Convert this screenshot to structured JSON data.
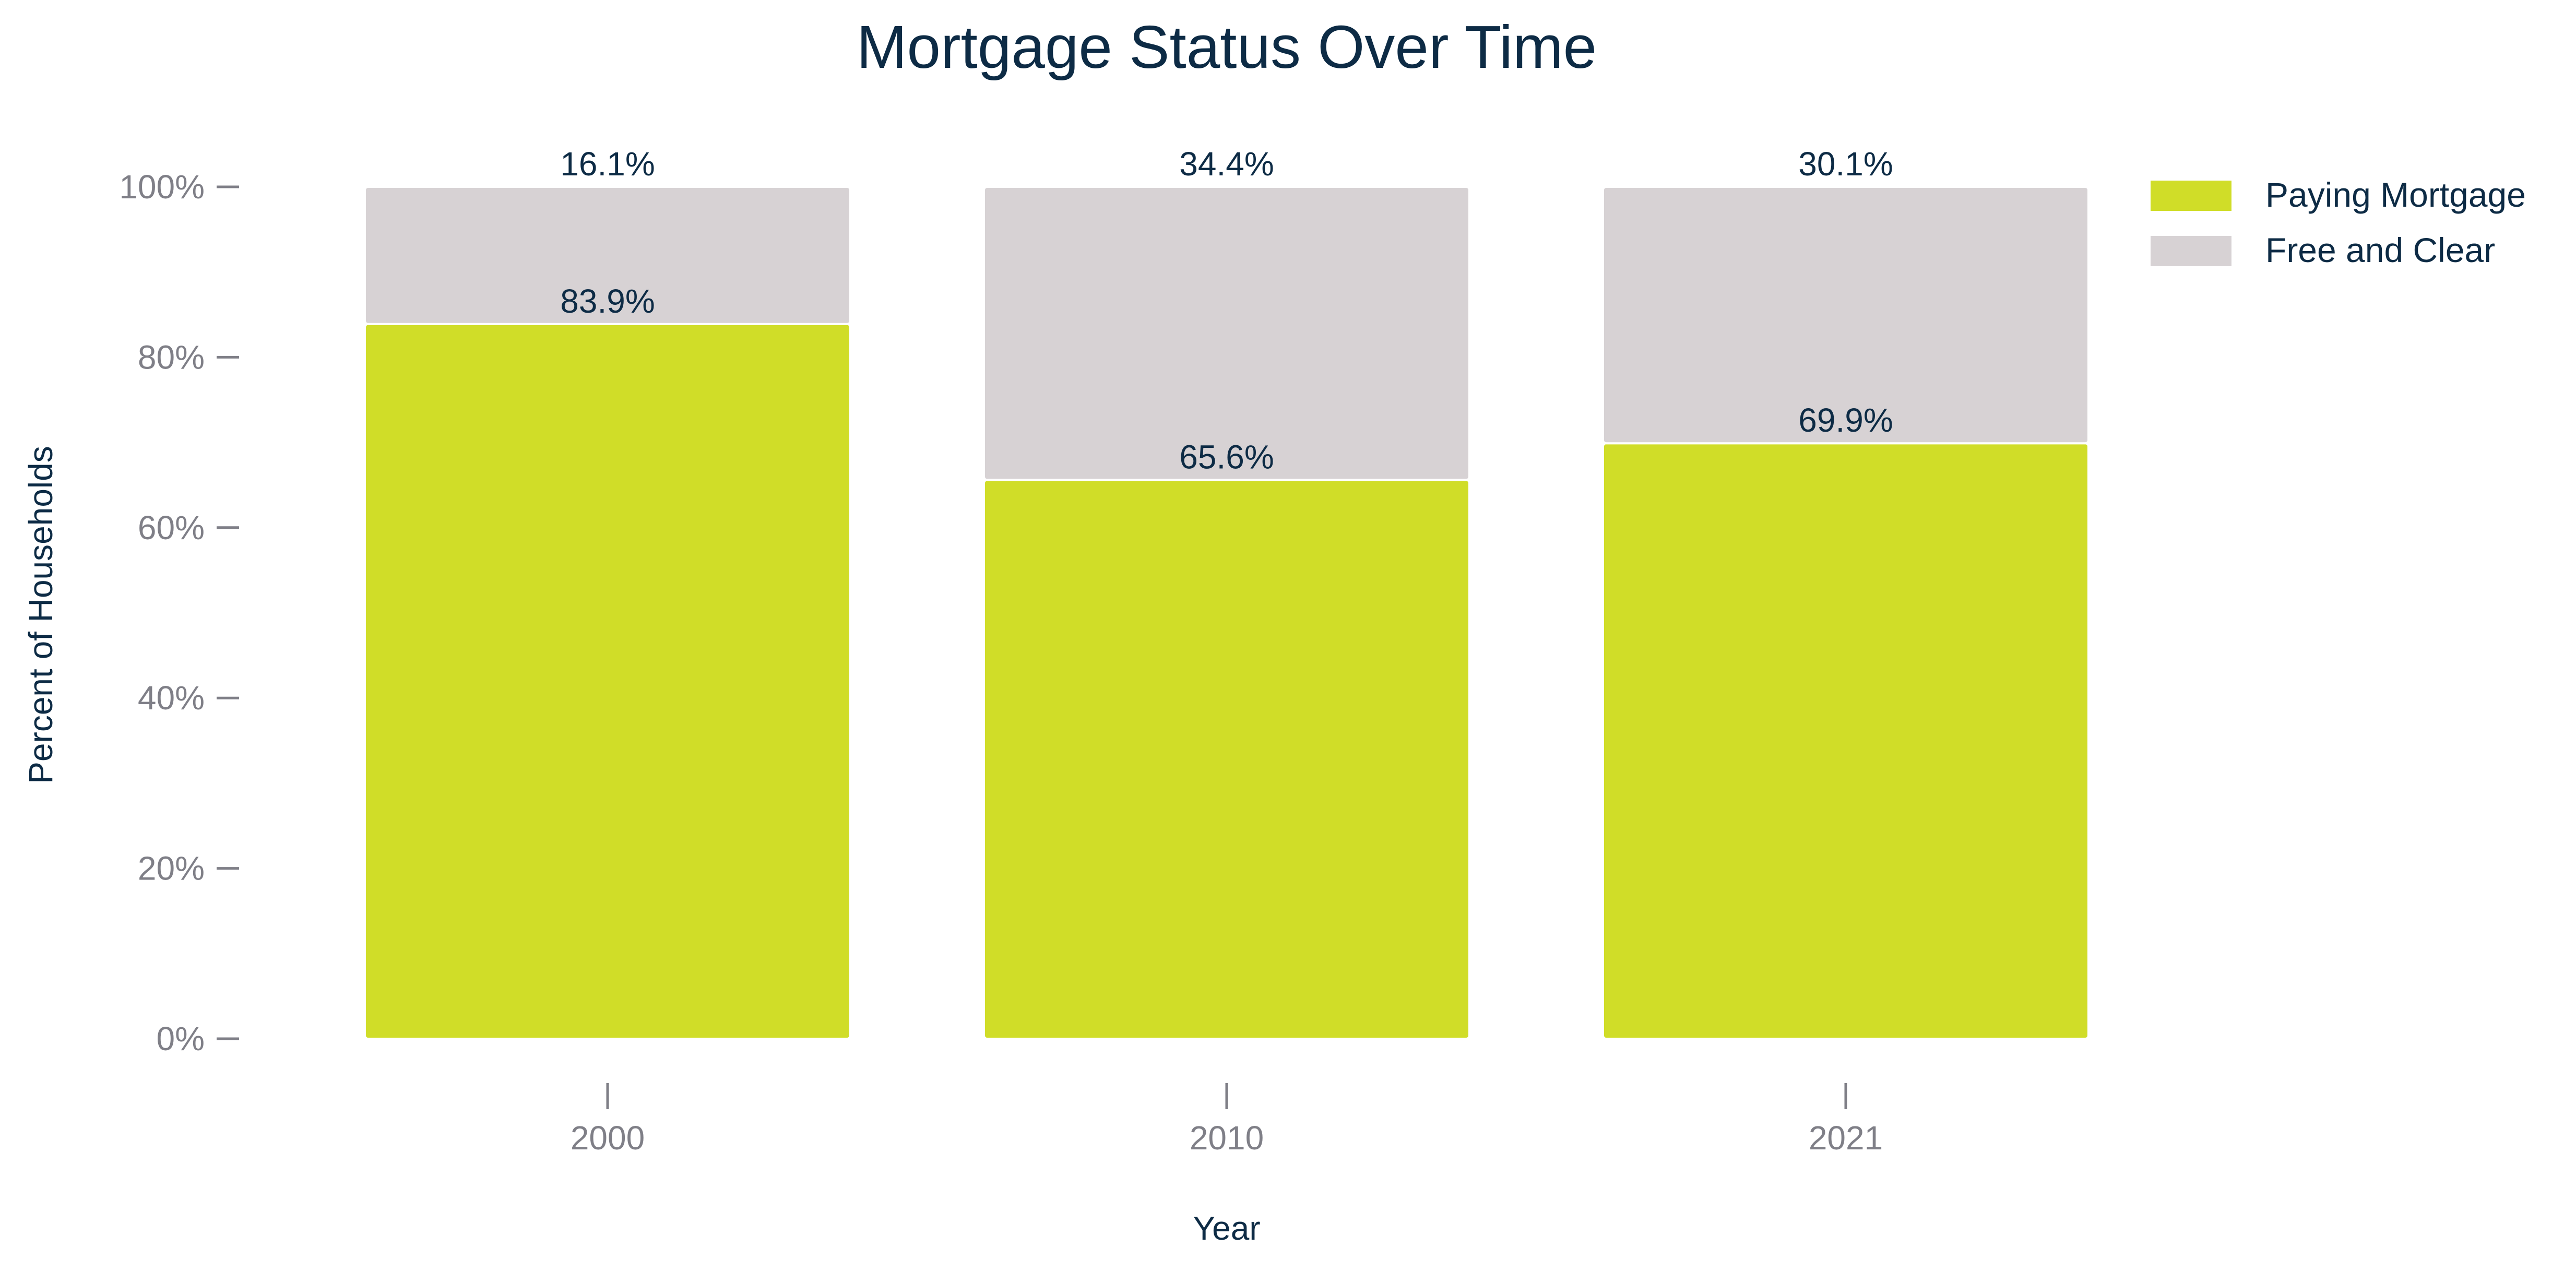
{
  "chart_data": {
    "type": "bar",
    "stacked": true,
    "title": "Mortgage Status Over Time",
    "xlabel": "Year",
    "ylabel": "Percent of Households",
    "categories": [
      "2000",
      "2010",
      "2021"
    ],
    "ylim": [
      0,
      100
    ],
    "yticks": [
      "0%",
      "20%",
      "40%",
      "60%",
      "80%",
      "100%"
    ],
    "ytick_values": [
      0,
      20,
      40,
      60,
      80,
      100
    ],
    "grid": false,
    "legend_position": "top-right",
    "series": [
      {
        "name": "Paying Mortgage",
        "values": [
          83.9,
          65.6,
          69.9
        ],
        "labels": [
          "83.9%",
          "65.6%",
          "69.9%"
        ],
        "color": "#d0dd28"
      },
      {
        "name": "Free and Clear",
        "values": [
          16.1,
          34.4,
          30.1
        ],
        "labels": [
          "16.1%",
          "34.4%",
          "30.1%"
        ],
        "color": "#d7d2d4"
      }
    ]
  }
}
